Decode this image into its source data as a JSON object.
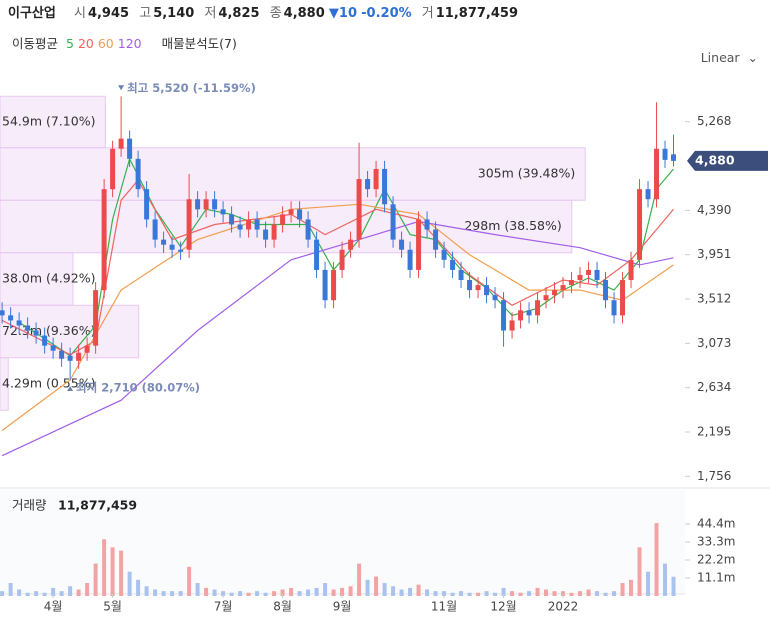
{
  "header": {
    "name": "이구산업",
    "fields": [
      {
        "label": "시",
        "value": "4,945"
      },
      {
        "label": "고",
        "value": "5,140"
      },
      {
        "label": "저",
        "value": "4,825"
      },
      {
        "label": "종",
        "value": "4,880"
      }
    ],
    "change": "▼10",
    "change_pct": "-0.20%",
    "volume_label": "거",
    "volume_value": "11,877,459"
  },
  "chart_data": {
    "type": "candlestick",
    "scale": "Linear",
    "series_group_label": "이동평균",
    "xlim": [
      -0.25,
      80.35
    ],
    "xticks": [
      {
        "value": 6,
        "label": "4월"
      },
      {
        "value": 13,
        "label": "5월"
      },
      {
        "value": 26,
        "label": "7월"
      },
      {
        "value": 33,
        "label": "8월"
      },
      {
        "value": 40,
        "label": "9월"
      },
      {
        "value": 52,
        "label": "11월"
      },
      {
        "value": 59,
        "label": "12월"
      },
      {
        "value": 66,
        "label": "2022"
      }
    ],
    "ylim": [
      1670,
      5780
    ],
    "yticks": [
      {
        "value": 5268,
        "label": "5,268"
      },
      {
        "value": 4390,
        "label": "4,390"
      },
      {
        "value": 3951,
        "label": "3,951"
      },
      {
        "value": 3512,
        "label": "3,512"
      },
      {
        "value": 3073,
        "label": "3,073"
      },
      {
        "value": 2634,
        "label": "2,634"
      },
      {
        "value": 2195,
        "label": "2,195"
      },
      {
        "value": 1756,
        "label": "1,756"
      }
    ],
    "up_color": "#ec4b4b",
    "down_color": "#3a78d8",
    "open": [
      3400,
      3350,
      3300,
      3250,
      3200,
      3150,
      3050,
      3000,
      2950,
      2900,
      2980,
      3050,
      3600,
      4600,
      5000,
      5100,
      4900,
      4600,
      4300,
      4100,
      4050,
      4000,
      4000,
      4500,
      4400,
      4500,
      4400,
      4350,
      4250,
      4200,
      4300,
      4200,
      4100,
      4250,
      4350,
      4400,
      4300,
      4100,
      3800,
      3500,
      3800,
      4000,
      4100,
      4700,
      4600,
      4800,
      4450,
      4100,
      4000,
      3800,
      4300,
      4200,
      4000,
      3900,
      3800,
      3700,
      3600,
      3650,
      3550,
      3500,
      3200,
      3300,
      3400,
      3350,
      3500,
      3550,
      3600,
      3650,
      3700,
      3750,
      3800,
      3700,
      3500,
      3350,
      3700,
      3900,
      4600,
      4500,
      5000,
      4945
    ],
    "high": [
      3480,
      3430,
      3380,
      3330,
      3280,
      3230,
      3130,
      3080,
      3030,
      3060,
      3130,
      3680,
      4700,
      5080,
      5520,
      5180,
      4980,
      4680,
      4380,
      4180,
      4130,
      4080,
      4750,
      4580,
      4580,
      4580,
      4480,
      4430,
      4330,
      4380,
      4380,
      4280,
      4330,
      4430,
      4480,
      4480,
      4380,
      4180,
      3880,
      3880,
      4080,
      4180,
      5060,
      4780,
      4880,
      4880,
      4530,
      4180,
      4080,
      4380,
      4380,
      4280,
      4080,
      3980,
      3880,
      3780,
      3730,
      3730,
      3630,
      3580,
      3380,
      3480,
      3480,
      3580,
      3630,
      3680,
      3730,
      3780,
      3830,
      3880,
      3880,
      3780,
      3580,
      3780,
      3980,
      4700,
      4680,
      5460,
      5080,
      5140
    ],
    "low": [
      3270,
      3220,
      3170,
      3120,
      3070,
      2970,
      2920,
      2840,
      2710,
      2820,
      2900,
      2970,
      3520,
      4520,
      4920,
      4820,
      4520,
      4220,
      4020,
      3970,
      3920,
      3900,
      3920,
      4320,
      4320,
      4320,
      4270,
      4170,
      4120,
      4120,
      4120,
      4020,
      4020,
      4170,
      4270,
      4220,
      4020,
      3720,
      3420,
      3420,
      3720,
      3920,
      4020,
      4520,
      4520,
      4370,
      4020,
      3920,
      3720,
      3720,
      4120,
      3920,
      3820,
      3720,
      3620,
      3520,
      3520,
      3470,
      3420,
      3040,
      3120,
      3220,
      3270,
      3270,
      3420,
      3470,
      3520,
      3570,
      3620,
      3670,
      3620,
      3420,
      3270,
      3270,
      3620,
      3820,
      4420,
      4420,
      4810,
      4825
    ],
    "close": [
      3350,
      3300,
      3250,
      3200,
      3150,
      3050,
      3000,
      2920,
      2900,
      2980,
      3050,
      3600,
      4600,
      5000,
      5100,
      4900,
      4600,
      4300,
      4100,
      4050,
      4000,
      3980,
      4500,
      4400,
      4500,
      4400,
      4350,
      4250,
      4200,
      4300,
      4200,
      4100,
      4250,
      4350,
      4400,
      4300,
      4100,
      3800,
      3500,
      3800,
      4000,
      4100,
      4700,
      4600,
      4800,
      4450,
      4100,
      4000,
      3800,
      4300,
      4200,
      4000,
      3900,
      3800,
      3700,
      3600,
      3650,
      3550,
      3500,
      3200,
      3300,
      3400,
      3350,
      3500,
      3550,
      3600,
      3650,
      3700,
      3750,
      3800,
      3700,
      3500,
      3350,
      3700,
      3900,
      4600,
      4500,
      5000,
      4890,
      4880
    ],
    "last_price": {
      "value": 4880,
      "label": "4,880"
    },
    "series": [
      {
        "name": "5",
        "color": "#37b24d",
        "x": [
          2,
          5,
          8,
          11,
          13,
          15,
          18,
          21,
          24,
          27,
          30,
          33,
          36,
          39,
          42,
          45,
          48,
          51,
          54,
          57,
          60,
          63,
          66,
          69,
          72,
          75,
          77,
          79
        ],
        "values": [
          3280,
          3120,
          2950,
          3250,
          4300,
          4900,
          4400,
          4030,
          4400,
          4350,
          4250,
          4250,
          4250,
          3800,
          4100,
          4600,
          4150,
          4100,
          3800,
          3620,
          3350,
          3420,
          3600,
          3720,
          3600,
          3900,
          4600,
          4800
        ]
      },
      {
        "name": "20",
        "color": "#f0645f",
        "x": [
          0,
          8,
          11,
          14,
          16,
          20,
          25,
          34,
          38,
          44,
          49,
          55,
          60,
          66,
          70,
          74,
          79
        ],
        "values": [
          3300,
          2960,
          3100,
          4490,
          4690,
          4100,
          4250,
          4350,
          4150,
          4400,
          4300,
          3750,
          3450,
          3700,
          3650,
          3900,
          4400
        ]
      },
      {
        "name": "60",
        "color": "#f29d4b",
        "x": [
          0,
          8,
          14,
          23,
          34,
          42,
          49,
          55,
          62,
          68,
          73,
          79
        ],
        "values": [
          2210,
          2710,
          3600,
          4100,
          4400,
          4450,
          4350,
          3950,
          3600,
          3600,
          3500,
          3850
        ]
      },
      {
        "name": "120",
        "color": "#a25fe6",
        "x": [
          0,
          14,
          23,
          34,
          40,
          49,
          58,
          68,
          75,
          79
        ],
        "values": [
          1960,
          2510,
          3200,
          3900,
          4050,
          4280,
          4150,
          4020,
          3850,
          3920
        ]
      }
    ],
    "annotations": [
      {
        "text": "최고 5,520 (-11.59%)",
        "x": 14,
        "value": 5520,
        "kind": "high"
      },
      {
        "text": "최저 2,710 (80.07%)",
        "x": 8,
        "value": 2710,
        "kind": "low"
      }
    ],
    "volume_profile": {
      "label": "매물분석도(7)",
      "bins": [
        2410,
        2930,
        3450,
        3970,
        4490,
        5010,
        5520
      ],
      "values": [
        4.29,
        72.3,
        38.0,
        298,
        305,
        54.9
      ],
      "value_labels": [
        "4.29m (0.55%)",
        "72.3m (9.36%)",
        "38.0m (4.92%)",
        "298m (38.58%)",
        "305m (39.48%)",
        "54.9m (7.10%)"
      ],
      "xlim": [
        0,
        357
      ],
      "color": "#e9c8f2"
    },
    "volume": {
      "title": "거래량",
      "total": "11,877,459",
      "ylim": [
        0,
        62.3
      ],
      "yticks": [
        {
          "value": 44.4,
          "label": "44.4m"
        },
        {
          "value": 33.3,
          "label": "33.3m"
        },
        {
          "value": 22.2,
          "label": "22.2m"
        },
        {
          "value": 11.1,
          "label": "11.1m"
        }
      ],
      "values": [
        3,
        8,
        4,
        2,
        3,
        2,
        5,
        3,
        6,
        4,
        8,
        20,
        35,
        30,
        28,
        15,
        10,
        6,
        4,
        3,
        3,
        3,
        18,
        8,
        5,
        4,
        3,
        2,
        3,
        2,
        3,
        2,
        3,
        4,
        5,
        3,
        4,
        5,
        8,
        4,
        5,
        6,
        20,
        10,
        12,
        8,
        6,
        4,
        5,
        7,
        4,
        3,
        3,
        2,
        3,
        2,
        2,
        3,
        2,
        5,
        3,
        2,
        3,
        5,
        4,
        3,
        3,
        2,
        3,
        4,
        3,
        2,
        3,
        8,
        10,
        30,
        15,
        45,
        20,
        11.877459
      ]
    }
  }
}
